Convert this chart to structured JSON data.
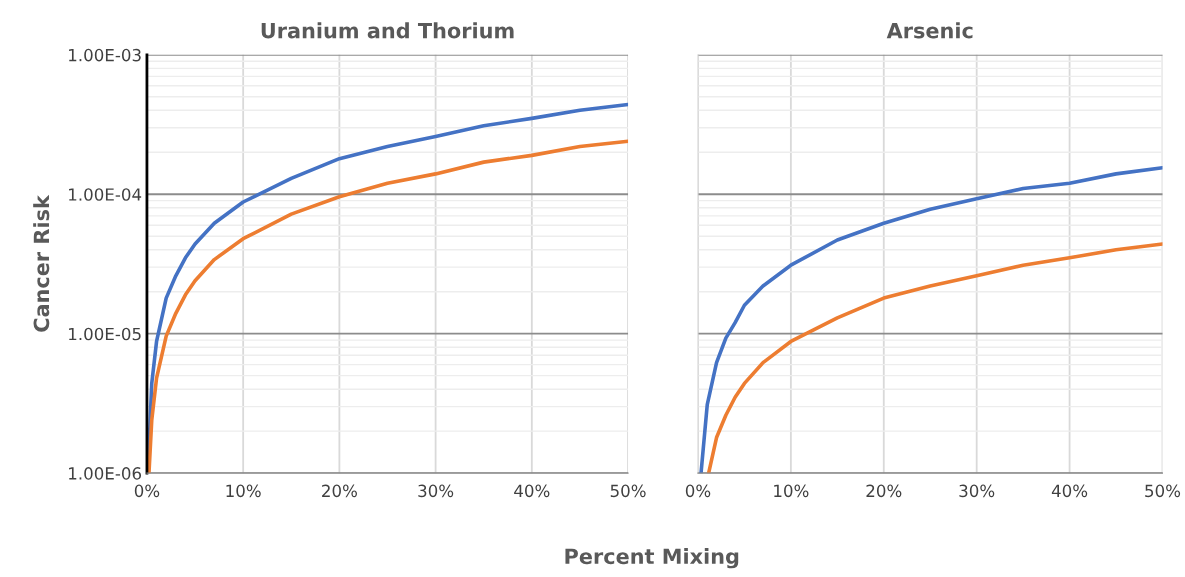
{
  "chart_data": [
    {
      "type": "line",
      "title": "Uranium and Thorium",
      "ylabel": "Cancer Risk",
      "xlabel": "Percent Mixing",
      "log": "y",
      "grid": true,
      "xlim": [
        0,
        50
      ],
      "xticks": [
        {
          "value": 0,
          "label": "0%"
        },
        {
          "value": 10,
          "label": "10%"
        },
        {
          "value": 20,
          "label": "20%"
        },
        {
          "value": 30,
          "label": "30%"
        },
        {
          "value": 40,
          "label": "40%"
        },
        {
          "value": 50,
          "label": "50%"
        }
      ],
      "ylim": [
        1e-06,
        0.001
      ],
      "yticks": [
        {
          "value": 1e-06,
          "label": "1.00E-06"
        },
        {
          "value": 1e-05,
          "label": "1.00E-05"
        },
        {
          "value": 0.0001,
          "label": "1.00E-04"
        },
        {
          "value": 0.001,
          "label": "1.00E-03"
        }
      ],
      "series": [
        {
          "color": "#4472c4",
          "x": [
            0.12,
            0.5,
            1,
            2,
            3,
            4,
            5,
            7,
            10,
            15,
            20,
            25,
            30,
            35,
            40,
            45,
            50
          ],
          "values": [
            1.06e-06,
            4.4e-06,
            8.8e-06,
            1.8e-05,
            2.6e-05,
            3.5e-05,
            4.4e-05,
            6.2e-05,
            8.8e-05,
            0.00013,
            0.00018,
            0.00022,
            0.00026,
            0.00031,
            0.00035,
            0.0004,
            0.00044
          ]
        },
        {
          "color": "#ed7d31",
          "x": [
            0.21,
            0.5,
            1,
            2,
            3,
            4,
            5,
            7,
            10,
            15,
            20,
            25,
            30,
            35,
            40,
            45,
            50
          ],
          "values": [
            1e-06,
            2.4e-06,
            4.8e-06,
            9.6e-06,
            1.4e-05,
            1.9e-05,
            2.4e-05,
            3.4e-05,
            4.8e-05,
            7.2e-05,
            9.6e-05,
            0.00012,
            0.00014,
            0.00017,
            0.00019,
            0.00022,
            0.00024
          ]
        }
      ]
    },
    {
      "type": "line",
      "title": "Arsenic",
      "log": "y",
      "grid": true,
      "tick_labels": "x",
      "xlim": [
        0,
        50
      ],
      "xticks": [
        {
          "value": 0,
          "label": "0%"
        },
        {
          "value": 10,
          "label": "10%"
        },
        {
          "value": 20,
          "label": "20%"
        },
        {
          "value": 30,
          "label": "30%"
        },
        {
          "value": 40,
          "label": "40%"
        },
        {
          "value": 50,
          "label": "50%"
        }
      ],
      "ylim": [
        1e-06,
        0.001
      ],
      "yticks": [
        {
          "value": 1e-06,
          "label": null
        },
        {
          "value": 1e-05,
          "label": null
        },
        {
          "value": 0.0001,
          "label": null
        },
        {
          "value": 0.001,
          "label": null
        }
      ],
      "series": [
        {
          "color": "#4472c4",
          "x": [
            0.33,
            1,
            2,
            3,
            4,
            5,
            7,
            10,
            15,
            20,
            25,
            30,
            35,
            40,
            45,
            50
          ],
          "values": [
            1e-06,
            3.1e-06,
            6.2e-06,
            9.3e-06,
            1.2e-05,
            1.6e-05,
            2.2e-05,
            3.1e-05,
            4.7e-05,
            6.2e-05,
            7.8e-05,
            9.3e-05,
            0.00011,
            0.00012,
            0.00014,
            0.000155
          ]
        },
        {
          "color": "#ed7d31",
          "x": [
            1.15,
            2,
            3,
            4,
            5,
            7,
            10,
            15,
            20,
            25,
            30,
            35,
            40,
            45,
            50
          ],
          "values": [
            1e-06,
            1.8e-06,
            2.6e-06,
            3.5e-06,
            4.4e-06,
            6.2e-06,
            8.8e-06,
            1.3e-05,
            1.8e-05,
            2.2e-05,
            2.6e-05,
            3.1e-05,
            3.5e-05,
            4e-05,
            4.4e-05
          ]
        }
      ]
    }
  ]
}
